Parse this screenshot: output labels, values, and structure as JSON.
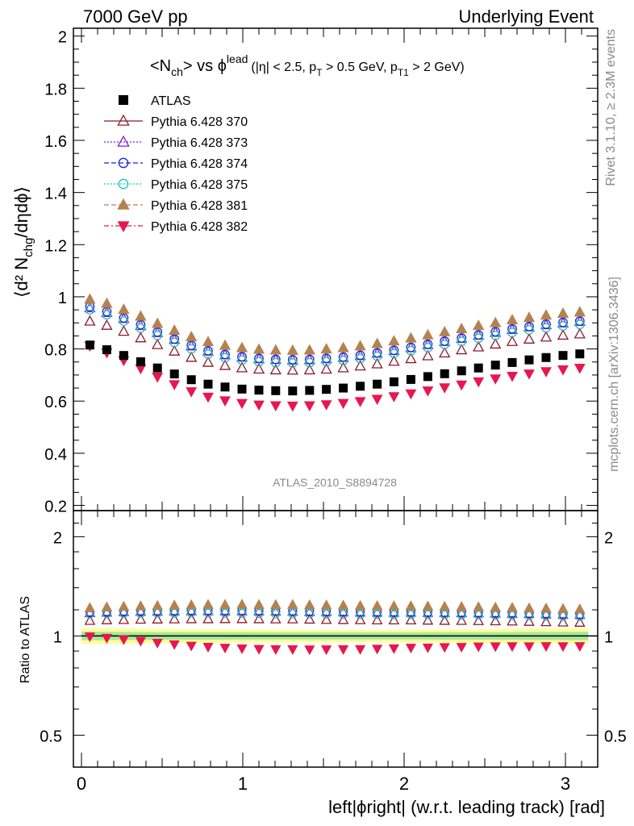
{
  "header": {
    "left": "7000 GeV pp",
    "right": "Underlying Event"
  },
  "side_texts": {
    "rivet": "Rivet 3.1.10, ≥ 2.3M events",
    "mcplots": "mcplots.cern.ch [arXiv:1306.3436]"
  },
  "watermark": "ATLAS_2010_S8894728",
  "chart_data": {
    "type": "scatter",
    "title_main": "<N",
    "title_main_sub": "ch",
    "title_vs": "> vs ϕ",
    "title_sup": "lead",
    "title_cuts_1": "(|η| < 2.5, p",
    "title_cuts_sub1": "T",
    "title_cuts_2": " > 0.5 GeV, p",
    "title_cuts_sub2": "T1",
    "title_cuts_3": " > 2 GeV)",
    "ylabel_main": "⟨d² N",
    "ylabel_main_sub": "chg",
    "ylabel_main_end": "/dηdϕ⟩",
    "ylabel_ratio": "Ratio to ATLAS",
    "xlabel": "left|ϕright| (w.r.t. leading track) [rad]",
    "main_ylim": [
      0.18,
      2.03
    ],
    "main_yticks": [
      0.2,
      0.4,
      0.6,
      0.8,
      1.0,
      1.2,
      1.4,
      1.6,
      1.8,
      2.0
    ],
    "main_ytick_labels": [
      "0.2",
      "0.4",
      "0.6",
      "0.8",
      "1",
      "1.2",
      "1.4",
      "1.6",
      "1.8",
      "2"
    ],
    "ratio_ylim": [
      0.4,
      2.4
    ],
    "ratio_yscale": "log",
    "ratio_yticks": [
      0.5,
      1.0,
      2.0
    ],
    "ratio_ytick_labels": [
      "0.5",
      "1",
      "2"
    ],
    "xlim": [
      -0.05,
      3.2
    ],
    "xticks": [
      0,
      1,
      2,
      3
    ],
    "xtick_labels": [
      "0",
      "1",
      "2",
      "3"
    ],
    "legend_position": "top-left",
    "x": [
      0.052,
      0.157,
      0.262,
      0.367,
      0.471,
      0.576,
      0.681,
      0.785,
      0.89,
      0.995,
      1.1,
      1.204,
      1.309,
      1.414,
      1.518,
      1.623,
      1.728,
      1.833,
      1.937,
      2.042,
      2.147,
      2.251,
      2.356,
      2.461,
      2.566,
      2.67,
      2.775,
      2.88,
      2.985,
      3.089
    ],
    "series": [
      {
        "name": "ATLAS",
        "marker": "square-filled",
        "color": "#000000",
        "values": [
          0.815,
          0.797,
          0.775,
          0.751,
          0.727,
          0.704,
          0.682,
          0.665,
          0.654,
          0.646,
          0.642,
          0.64,
          0.639,
          0.641,
          0.645,
          0.65,
          0.657,
          0.665,
          0.674,
          0.683,
          0.694,
          0.705,
          0.716,
          0.727,
          0.738,
          0.748,
          0.758,
          0.767,
          0.775,
          0.781
        ]
      },
      {
        "name": "Pythia 6.428 370",
        "marker": "triangle-open",
        "color": "#8b1a2b",
        "line": "solid",
        "values": [
          0.906,
          0.89,
          0.867,
          0.842,
          0.816,
          0.791,
          0.767,
          0.748,
          0.736,
          0.727,
          0.722,
          0.719,
          0.718,
          0.719,
          0.722,
          0.727,
          0.734,
          0.742,
          0.752,
          0.762,
          0.773,
          0.784,
          0.796,
          0.807,
          0.818,
          0.828,
          0.837,
          0.845,
          0.852,
          0.857
        ]
      },
      {
        "name": "Pythia 6.428 373",
        "marker": "triangle-open",
        "color": "#7b20d8",
        "line": "dotted",
        "values": [
          0.957,
          0.939,
          0.916,
          0.889,
          0.862,
          0.836,
          0.811,
          0.791,
          0.777,
          0.768,
          0.762,
          0.759,
          0.757,
          0.758,
          0.762,
          0.767,
          0.774,
          0.783,
          0.793,
          0.804,
          0.816,
          0.828,
          0.84,
          0.852,
          0.863,
          0.874,
          0.884,
          0.892,
          0.899,
          0.905
        ]
      },
      {
        "name": "Pythia 6.428 374",
        "marker": "circle-open",
        "color": "#1f1fd6",
        "line": "dashed",
        "values": [
          0.962,
          0.943,
          0.919,
          0.893,
          0.865,
          0.838,
          0.814,
          0.793,
          0.779,
          0.77,
          0.764,
          0.76,
          0.759,
          0.76,
          0.764,
          0.769,
          0.776,
          0.785,
          0.795,
          0.806,
          0.818,
          0.83,
          0.842,
          0.854,
          0.866,
          0.877,
          0.886,
          0.895,
          0.902,
          0.907
        ]
      },
      {
        "name": "Pythia 6.428 375",
        "marker": "circle-open",
        "color": "#19c8b0",
        "line": "dotted",
        "values": [
          0.95,
          0.931,
          0.907,
          0.88,
          0.852,
          0.825,
          0.8,
          0.78,
          0.766,
          0.757,
          0.751,
          0.747,
          0.746,
          0.747,
          0.751,
          0.756,
          0.763,
          0.772,
          0.782,
          0.793,
          0.805,
          0.817,
          0.829,
          0.841,
          0.852,
          0.863,
          0.873,
          0.881,
          0.888,
          0.894
        ]
      },
      {
        "name": "Pythia 6.428 381",
        "marker": "triangle-filled",
        "color": "#b3834f",
        "line": "dashed",
        "values": [
          0.99,
          0.974,
          0.951,
          0.925,
          0.897,
          0.871,
          0.846,
          0.827,
          0.813,
          0.804,
          0.798,
          0.795,
          0.794,
          0.795,
          0.799,
          0.804,
          0.811,
          0.82,
          0.83,
          0.841,
          0.853,
          0.865,
          0.877,
          0.889,
          0.9,
          0.911,
          0.92,
          0.929,
          0.936,
          0.941
        ]
      },
      {
        "name": "Pythia 6.428 382",
        "marker": "triangle-down-filled",
        "color": "#e8174d",
        "line": "dashdot",
        "values": [
          0.812,
          0.786,
          0.756,
          0.725,
          0.693,
          0.664,
          0.637,
          0.616,
          0.602,
          0.592,
          0.586,
          0.583,
          0.582,
          0.583,
          0.587,
          0.592,
          0.599,
          0.608,
          0.618,
          0.629,
          0.64,
          0.652,
          0.663,
          0.675,
          0.686,
          0.696,
          0.705,
          0.714,
          0.721,
          0.727
        ]
      }
    ],
    "ratio_band_outer_color": "#ffff99",
    "ratio_band_inner_color": "#a8e89a"
  }
}
